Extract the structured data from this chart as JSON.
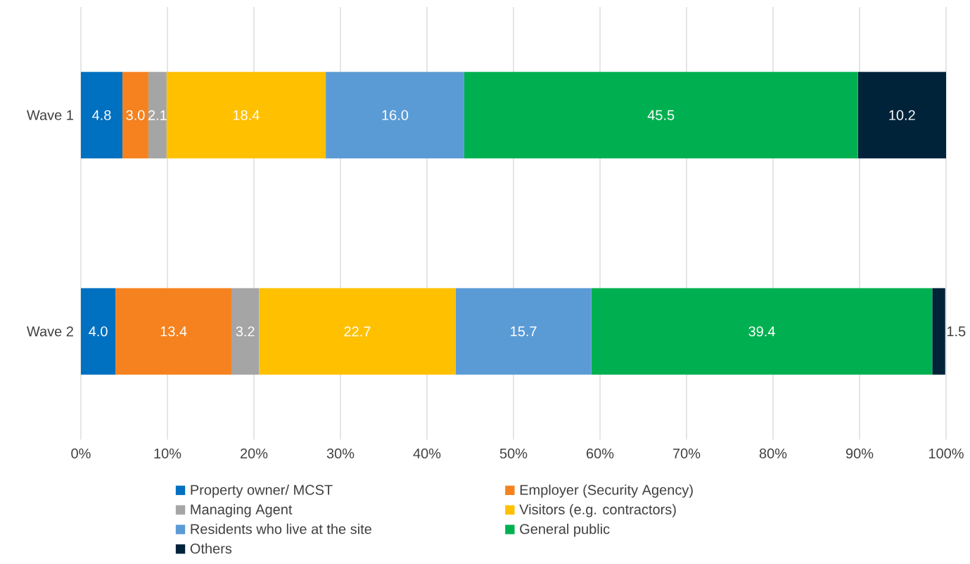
{
  "chart_data": {
    "type": "bar",
    "orientation": "horizontal",
    "stacked": true,
    "categories": [
      "Wave 1",
      "Wave 2"
    ],
    "xlim": [
      0,
      100
    ],
    "xticks": [
      {
        "value": 0,
        "label": "0%"
      },
      {
        "value": 10,
        "label": "10%"
      },
      {
        "value": 20,
        "label": "20%"
      },
      {
        "value": 30,
        "label": "30%"
      },
      {
        "value": 40,
        "label": "40%"
      },
      {
        "value": 50,
        "label": "50%"
      },
      {
        "value": 60,
        "label": "60%"
      },
      {
        "value": 70,
        "label": "70%"
      },
      {
        "value": 80,
        "label": "80%"
      },
      {
        "value": 90,
        "label": "90%"
      },
      {
        "value": 100,
        "label": "100%"
      }
    ],
    "grid": "x",
    "legend": "bottom",
    "series": [
      {
        "name": "Property owner/ MCST",
        "color": "#0070c0",
        "values": [
          4.8,
          4.0
        ],
        "value_labels": [
          "4.8",
          "4.0"
        ]
      },
      {
        "name": "Employer (Security Agency)",
        "color": "#f5821f",
        "values": [
          3.0,
          13.4
        ],
        "value_labels": [
          "3.0",
          "13.4"
        ]
      },
      {
        "name": "Managing Agent",
        "color": "#a5a5a5",
        "values": [
          2.1,
          3.2
        ],
        "value_labels": [
          "2.1",
          "3.2"
        ]
      },
      {
        "name": "Visitors (e.g. contractors)",
        "color": "#ffc000",
        "values": [
          18.4,
          22.7
        ],
        "value_labels": [
          "18.4",
          "22.7"
        ]
      },
      {
        "name": "Residents who live at the site",
        "color": "#5b9bd5",
        "values": [
          16.0,
          15.7
        ],
        "value_labels": [
          "16.0",
          "15.7"
        ]
      },
      {
        "name": "General public",
        "color": "#00b050",
        "values": [
          45.5,
          39.4
        ],
        "value_labels": [
          "45.5",
          "39.4"
        ]
      },
      {
        "name": "Others",
        "color": "#00233a",
        "values": [
          10.2,
          1.5
        ],
        "value_labels": [
          "10.2",
          "1.5"
        ]
      }
    ]
  }
}
